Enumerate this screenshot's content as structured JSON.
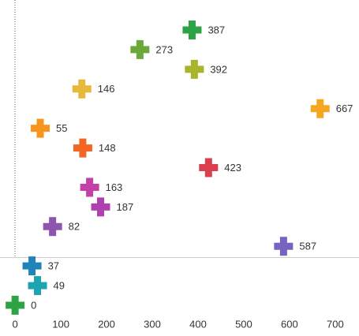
{
  "chart_data": {
    "type": "dot",
    "categories": [
      null,
      null,
      null,
      null,
      null,
      null,
      null,
      null,
      null,
      null,
      null,
      null,
      null,
      null,
      null
    ],
    "values": [
      387,
      273,
      392,
      146,
      667,
      55,
      148,
      423,
      163,
      187,
      82,
      587,
      37,
      49,
      0
    ],
    "colors": [
      "#2ca444",
      "#6aa83c",
      "#a8b42c",
      "#e8b83c",
      "#f5a623",
      "#f7941d",
      "#f26522",
      "#d93f4f",
      "#c240a8",
      "#b040b0",
      "#8e54b0",
      "#7664c0",
      "#2084b8",
      "#1ca4b0",
      "#2ca444"
    ],
    "xlim": [
      -33,
      752
    ],
    "xticks": [
      0,
      100,
      200,
      300,
      400,
      500,
      600,
      700
    ]
  }
}
